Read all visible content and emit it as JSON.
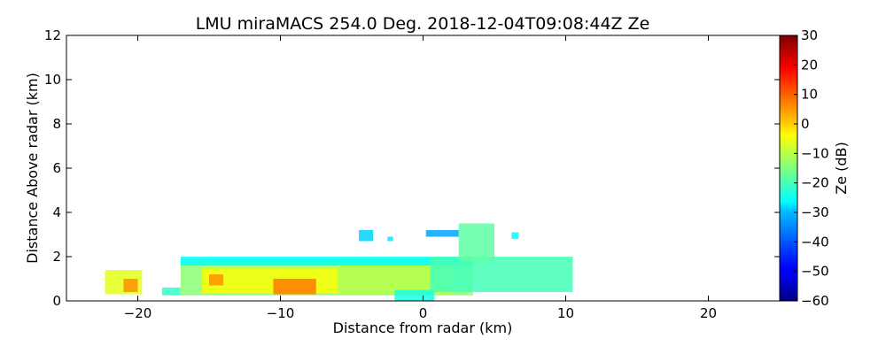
{
  "chart_data": {
    "type": "heatmap",
    "title": "LMU miraMACS 254.0 Deg. 2018-12-04T09:08:44Z  Ze",
    "xlabel": "Distance from radar (km)",
    "ylabel": "Distance Above radar  (km)",
    "xlim": [
      -25,
      25
    ],
    "ylim": [
      0,
      12
    ],
    "xticks": [
      -20,
      -10,
      0,
      10,
      20
    ],
    "yticks": [
      0,
      2,
      4,
      6,
      8,
      10,
      12
    ],
    "grid": false,
    "colorbar": {
      "label": "Ze (dB)",
      "range": [
        -60,
        30
      ],
      "ticks": [
        30,
        20,
        10,
        0,
        -10,
        -20,
        -30,
        -40,
        -50,
        -60
      ],
      "colormap": "jet"
    },
    "echo_regions": [
      {
        "x0": -22.3,
        "x1": -19.7,
        "y0": 0.3,
        "y1": 1.4,
        "ze": -6
      },
      {
        "x0": -21.0,
        "x1": -20.0,
        "y0": 0.4,
        "y1": 1.0,
        "ze": 6
      },
      {
        "x0": -18.3,
        "x1": -17.0,
        "y0": 0.25,
        "y1": 0.6,
        "ze": -22
      },
      {
        "x0": -17.0,
        "x1": 3.5,
        "y0": 0.25,
        "y1": 1.9,
        "ze": -14
      },
      {
        "x0": -15.5,
        "x1": -6.0,
        "y0": 0.35,
        "y1": 1.5,
        "ze": -4
      },
      {
        "x0": -10.5,
        "x1": -7.5,
        "y0": 0.3,
        "y1": 1.0,
        "ze": 8
      },
      {
        "x0": -15.0,
        "x1": -14.0,
        "y0": 0.7,
        "y1": 1.2,
        "ze": 6
      },
      {
        "x0": -6.0,
        "x1": 2.0,
        "y0": 0.3,
        "y1": 1.6,
        "ze": -10
      },
      {
        "x0": -2.0,
        "x1": 0.8,
        "y0": 0.0,
        "y1": 0.5,
        "ze": -24
      },
      {
        "x0": -17.0,
        "x1": 3.5,
        "y0": 1.6,
        "y1": 2.0,
        "ze": -26
      },
      {
        "x0": 0.5,
        "x1": 10.5,
        "y0": 0.4,
        "y1": 2.0,
        "ze": -20
      },
      {
        "x0": 2.5,
        "x1": 5.0,
        "y0": 1.8,
        "y1": 3.5,
        "ze": -18
      },
      {
        "x0": 0.2,
        "x1": 2.5,
        "y0": 2.9,
        "y1": 3.2,
        "ze": -34
      },
      {
        "x0": -4.5,
        "x1": -3.5,
        "y0": 2.7,
        "y1": 3.2,
        "ze": -30
      },
      {
        "x0": -2.5,
        "x1": -2.1,
        "y0": 2.7,
        "y1": 2.9,
        "ze": -28
      },
      {
        "x0": 6.2,
        "x1": 6.7,
        "y0": 2.8,
        "y1": 3.1,
        "ze": -26
      }
    ]
  }
}
